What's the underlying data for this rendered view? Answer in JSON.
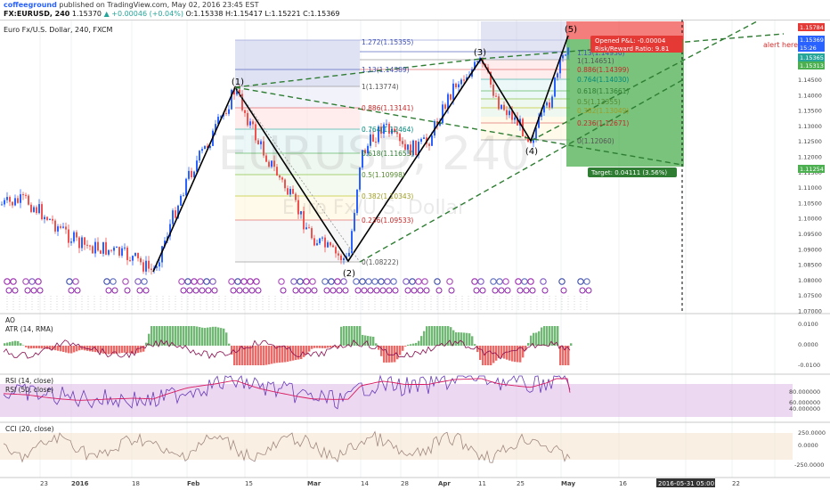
{
  "header": {
    "author": "coffeeground",
    "published": "published on TradingView.com, May 02, 2016 23:45 EST",
    "symbol": "FX:EURUSD, 240",
    "last": "1.15370",
    "change": "▲ +0.00046 (+0.04%)",
    "open": "O:1.15338",
    "high": "H:1.15417",
    "low": "L:1.15221",
    "close": "C:1.15369"
  },
  "main_pane": {
    "title": "Euro Fx/U.S. Dollar, 240, FXCM",
    "watermark_symbol": "EURUSD, 240",
    "watermark_name": "Euro Fx/U.S. Dollar",
    "price_axis": [
      "1.14500",
      "1.14000",
      "1.13500",
      "1.13000",
      "1.12500",
      "1.12000",
      "1.11500",
      "1.11000",
      "1.10500",
      "1.10000",
      "1.09500",
      "1.09000",
      "1.08500",
      "1.08000",
      "1.07500",
      "1.07000"
    ],
    "price_tags": [
      "1.15784",
      "1.15369",
      "15:26",
      "1.15365",
      "1.15313",
      "1.11254"
    ],
    "colors": {
      "bull": "#2962ff",
      "bear": "#ef5350",
      "wave": "#000000",
      "trend": "#2e7d32",
      "target_box": "#4caf50",
      "stop_box": "#ef5350"
    }
  },
  "waves": [
    "(1)",
    "(2)",
    "(3)",
    "(4)",
    "(5)"
  ],
  "fib_left": [
    "1.272(1.15355)",
    "1.13(1.14389)",
    "1(1.13774)",
    "0.886(1.13141)",
    "0.764(1.12464)",
    "0.618(1.11653)",
    "0.5(1.10998)",
    "0.382(1.10343)",
    "0.236(1.09533)",
    "0(1.08222)"
  ],
  "fib_right": [
    "1.13(1.14936)",
    "1(1.14651)",
    "0.886(1.14399)",
    "0.764(1.14030)",
    "0.618(1.13661)",
    "0.5(1.13355)",
    "0.382(1.13049)",
    "0.236(1.12671)",
    "0(1.12060)"
  ],
  "trade": {
    "pnl": "Opened P&L: -0.00004",
    "rr": "Risk/Reward Ratio: 9.81",
    "target": "Target: 0.04111 (3.56%)",
    "alert": "alert here"
  },
  "indicators": {
    "ao": {
      "title": "AO",
      "subtitle": "ATR (14, RMA)",
      "axis": [
        "0.0100",
        "0.0000",
        "-0.0100"
      ]
    },
    "rsi": {
      "title": "RSI (14, close)",
      "subtitle": "RSI (50, close)",
      "axis": [
        "80.000000",
        "60.000000",
        "40.000000"
      ]
    },
    "cci": {
      "title": "CCI (20, close)",
      "axis": [
        "250.0000",
        "0.0000",
        "-250.0000"
      ]
    }
  },
  "time_axis": [
    "23",
    "2016",
    "18",
    "Feb",
    "15",
    "Mar",
    "14",
    "28",
    "Apr",
    "11",
    "25",
    "May",
    "16",
    "2016-05-31 05:00:00",
    "22"
  ]
}
